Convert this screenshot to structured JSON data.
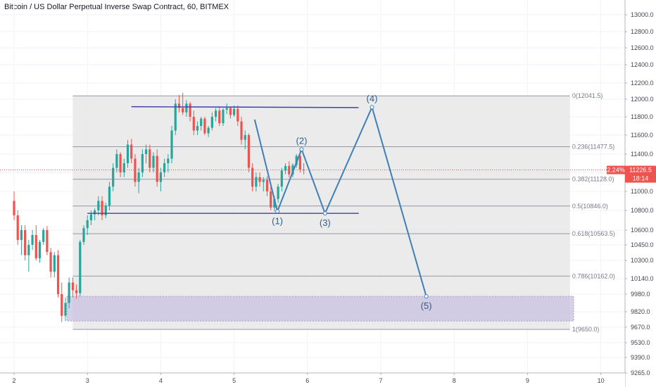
{
  "header": {
    "title": "Bitcoin / US Dollar Perpetual Inverse Swap Contract, 60, BITMEX"
  },
  "price_tag": {
    "change": "2.24%",
    "price": "11226.5",
    "countdown": "18:14"
  },
  "colors": {
    "up": "#26a69a",
    "down": "#ef5350",
    "fib_zone": "#e8e8e8",
    "target_zone": "#c8c0e0",
    "channel_line": "#3f3fb0",
    "wave_line": "#3f7fb8",
    "price_line": "#ef5350"
  },
  "chart_data": {
    "type": "candlestick",
    "x_ticks": [
      "2",
      "3",
      "4",
      "5",
      "6",
      "7",
      "8",
      "9",
      "10"
    ],
    "y_ticks": [
      "13000.0",
      "12800.0",
      "12600.0",
      "12400.0",
      "12200.0",
      "12000.0",
      "11800.0",
      "11600.0",
      "11400.0",
      "11200.0",
      "11000.0",
      "10800.0",
      "10600.0",
      "10450.0",
      "10300.0",
      "10140.0",
      "9980.0",
      "9820.0",
      "9670.0",
      "9530.0",
      "9390.0",
      "9265.0"
    ],
    "fib_levels": [
      {
        "label": "0(12041.5)",
        "value": 12041.5
      },
      {
        "label": "0.236(11477.5)",
        "value": 11477.5
      },
      {
        "label": "0.382(11128.0)",
        "value": 11128.0
      },
      {
        "label": "0.5(10846.0)",
        "value": 10846.0
      },
      {
        "label": "0.618(10563.5)",
        "value": 10563.5
      },
      {
        "label": "0.786(10162.0)",
        "value": 10162.0
      },
      {
        "label": "1(9650.0)",
        "value": 9650.0
      }
    ],
    "target_zone": {
      "from_price": 9730,
      "to_price": 9960
    },
    "channel_lines": [
      {
        "from": {
          "x": 3.6,
          "y": 11915
        },
        "to": {
          "x": 6.7,
          "y": 11905
        }
      },
      {
        "from": {
          "x": 3.0,
          "y": 10770
        },
        "to": {
          "x": 6.7,
          "y": 10770
        }
      }
    ],
    "waves": [
      {
        "label": "(1)",
        "x": 5.59,
        "y": 10790
      },
      {
        "label": "(2)",
        "x": 5.92,
        "y": 11450
      },
      {
        "label": "(3)",
        "x": 6.24,
        "y": 10770
      },
      {
        "label": "(4)",
        "x": 6.88,
        "y": 11910
      },
      {
        "label": "(5)",
        "x": 7.62,
        "y": 9960
      }
    ],
    "wave_start": {
      "x": 5.28,
      "y": 11770
    },
    "last_price": 11226.5,
    "candles": [
      {
        "x": 2.0,
        "o": 10900,
        "h": 11000,
        "l": 10700,
        "c": 10750
      },
      {
        "x": 2.05,
        "o": 10750,
        "h": 10800,
        "l": 10450,
        "c": 10500
      },
      {
        "x": 2.1,
        "o": 10500,
        "h": 10650,
        "l": 10350,
        "c": 10600
      },
      {
        "x": 2.15,
        "o": 10600,
        "h": 10650,
        "l": 10300,
        "c": 10350
      },
      {
        "x": 2.2,
        "o": 10350,
        "h": 10500,
        "l": 10200,
        "c": 10450
      },
      {
        "x": 2.25,
        "o": 10450,
        "h": 10600,
        "l": 10400,
        "c": 10550
      },
      {
        "x": 2.3,
        "o": 10550,
        "h": 10650,
        "l": 10300,
        "c": 10320
      },
      {
        "x": 2.35,
        "o": 10320,
        "h": 10500,
        "l": 10280,
        "c": 10480
      },
      {
        "x": 2.4,
        "o": 10480,
        "h": 10620,
        "l": 10450,
        "c": 10600
      },
      {
        "x": 2.45,
        "o": 10600,
        "h": 10640,
        "l": 10350,
        "c": 10380
      },
      {
        "x": 2.5,
        "o": 10380,
        "h": 10420,
        "l": 10150,
        "c": 10200
      },
      {
        "x": 2.55,
        "o": 10200,
        "h": 10380,
        "l": 10150,
        "c": 10350
      },
      {
        "x": 2.6,
        "o": 10350,
        "h": 10400,
        "l": 9950,
        "c": 9980
      },
      {
        "x": 2.65,
        "o": 9980,
        "h": 10100,
        "l": 9720,
        "c": 9780
      },
      {
        "x": 2.7,
        "o": 9780,
        "h": 9950,
        "l": 9730,
        "c": 9900
      },
      {
        "x": 2.75,
        "o": 9900,
        "h": 10150,
        "l": 9850,
        "c": 10100
      },
      {
        "x": 2.8,
        "o": 10100,
        "h": 10150,
        "l": 9950,
        "c": 10020
      },
      {
        "x": 2.85,
        "o": 10020,
        "h": 10080,
        "l": 9940,
        "c": 9990
      },
      {
        "x": 2.9,
        "o": 9990,
        "h": 10500,
        "l": 9960,
        "c": 10480
      },
      {
        "x": 2.95,
        "o": 10480,
        "h": 10650,
        "l": 10450,
        "c": 10620
      },
      {
        "x": 3.0,
        "o": 10620,
        "h": 10750,
        "l": 10550,
        "c": 10700
      },
      {
        "x": 3.05,
        "o": 10700,
        "h": 10800,
        "l": 10650,
        "c": 10760
      },
      {
        "x": 3.1,
        "o": 10760,
        "h": 10820,
        "l": 10700,
        "c": 10800
      },
      {
        "x": 3.15,
        "o": 10800,
        "h": 10950,
        "l": 10750,
        "c": 10900
      },
      {
        "x": 3.2,
        "o": 10900,
        "h": 10950,
        "l": 10700,
        "c": 10750
      },
      {
        "x": 3.25,
        "o": 10750,
        "h": 10880,
        "l": 10720,
        "c": 10850
      },
      {
        "x": 3.3,
        "o": 10850,
        "h": 11100,
        "l": 10800,
        "c": 11050
      },
      {
        "x": 3.35,
        "o": 11050,
        "h": 11300,
        "l": 11000,
        "c": 11250
      },
      {
        "x": 3.4,
        "o": 11250,
        "h": 11450,
        "l": 11200,
        "c": 11400
      },
      {
        "x": 3.45,
        "o": 11400,
        "h": 11420,
        "l": 11150,
        "c": 11200
      },
      {
        "x": 3.5,
        "o": 11200,
        "h": 11350,
        "l": 11150,
        "c": 11300
      },
      {
        "x": 3.55,
        "o": 11300,
        "h": 11550,
        "l": 11250,
        "c": 11500
      },
      {
        "x": 3.6,
        "o": 11500,
        "h": 11560,
        "l": 11300,
        "c": 11350
      },
      {
        "x": 3.65,
        "o": 11350,
        "h": 11400,
        "l": 11050,
        "c": 11100
      },
      {
        "x": 3.7,
        "o": 11100,
        "h": 11250,
        "l": 10980,
        "c": 11200
      },
      {
        "x": 3.75,
        "o": 11200,
        "h": 11450,
        "l": 11150,
        "c": 11400
      },
      {
        "x": 3.8,
        "o": 11400,
        "h": 11500,
        "l": 11300,
        "c": 11450
      },
      {
        "x": 3.85,
        "o": 11450,
        "h": 11500,
        "l": 11200,
        "c": 11250
      },
      {
        "x": 3.9,
        "o": 11250,
        "h": 11420,
        "l": 11200,
        "c": 11380
      },
      {
        "x": 3.95,
        "o": 11380,
        "h": 11450,
        "l": 11050,
        "c": 11100
      },
      {
        "x": 4.0,
        "o": 11100,
        "h": 11250,
        "l": 11000,
        "c": 11200
      },
      {
        "x": 4.05,
        "o": 11200,
        "h": 11350,
        "l": 11150,
        "c": 11300
      },
      {
        "x": 4.1,
        "o": 11300,
        "h": 11400,
        "l": 11200,
        "c": 11350
      },
      {
        "x": 4.15,
        "o": 11350,
        "h": 11700,
        "l": 11300,
        "c": 11650
      },
      {
        "x": 4.2,
        "o": 11650,
        "h": 12000,
        "l": 11600,
        "c": 11950
      },
      {
        "x": 4.25,
        "o": 11950,
        "h": 12050,
        "l": 11850,
        "c": 11900
      },
      {
        "x": 4.3,
        "o": 11900,
        "h": 12080,
        "l": 11820,
        "c": 11850
      },
      {
        "x": 4.35,
        "o": 11850,
        "h": 11990,
        "l": 11800,
        "c": 11950
      },
      {
        "x": 4.4,
        "o": 11950,
        "h": 11970,
        "l": 11750,
        "c": 11800
      },
      {
        "x": 4.45,
        "o": 11800,
        "h": 11870,
        "l": 11600,
        "c": 11650
      },
      {
        "x": 4.5,
        "o": 11650,
        "h": 11750,
        "l": 11600,
        "c": 11700
      },
      {
        "x": 4.55,
        "o": 11700,
        "h": 11800,
        "l": 11650,
        "c": 11780
      },
      {
        "x": 4.6,
        "o": 11780,
        "h": 11800,
        "l": 11600,
        "c": 11620
      },
      {
        "x": 4.65,
        "o": 11620,
        "h": 11700,
        "l": 11580,
        "c": 11680
      },
      {
        "x": 4.7,
        "o": 11680,
        "h": 11850,
        "l": 11650,
        "c": 11800
      },
      {
        "x": 4.75,
        "o": 11800,
        "h": 11900,
        "l": 11750,
        "c": 11870
      },
      {
        "x": 4.8,
        "o": 11870,
        "h": 11920,
        "l": 11700,
        "c": 11730
      },
      {
        "x": 4.85,
        "o": 11730,
        "h": 11900,
        "l": 11700,
        "c": 11880
      },
      {
        "x": 4.9,
        "o": 11880,
        "h": 11950,
        "l": 11830,
        "c": 11900
      },
      {
        "x": 4.95,
        "o": 11900,
        "h": 11920,
        "l": 11780,
        "c": 11820
      },
      {
        "x": 5.0,
        "o": 11820,
        "h": 11930,
        "l": 11800,
        "c": 11890
      },
      {
        "x": 5.05,
        "o": 11890,
        "h": 11930,
        "l": 11700,
        "c": 11750
      },
      {
        "x": 5.1,
        "o": 11750,
        "h": 11800,
        "l": 11500,
        "c": 11550
      },
      {
        "x": 5.15,
        "o": 11550,
        "h": 11650,
        "l": 11450,
        "c": 11600
      },
      {
        "x": 5.2,
        "o": 11600,
        "h": 11620,
        "l": 11200,
        "c": 11250
      },
      {
        "x": 5.25,
        "o": 11250,
        "h": 11300,
        "l": 11000,
        "c": 11050
      },
      {
        "x": 5.3,
        "o": 11050,
        "h": 11200,
        "l": 11000,
        "c": 11150
      },
      {
        "x": 5.35,
        "o": 11150,
        "h": 11200,
        "l": 11050,
        "c": 11100
      },
      {
        "x": 5.4,
        "o": 11100,
        "h": 11150,
        "l": 11000,
        "c": 11120
      },
      {
        "x": 5.45,
        "o": 11120,
        "h": 11160,
        "l": 10950,
        "c": 11000
      },
      {
        "x": 5.5,
        "o": 11000,
        "h": 11050,
        "l": 10800,
        "c": 10830
      },
      {
        "x": 5.55,
        "o": 10830,
        "h": 10950,
        "l": 10790,
        "c": 10920
      },
      {
        "x": 5.6,
        "o": 10920,
        "h": 11080,
        "l": 10880,
        "c": 11050
      },
      {
        "x": 5.65,
        "o": 11050,
        "h": 11250,
        "l": 11000,
        "c": 11220
      },
      {
        "x": 5.7,
        "o": 11220,
        "h": 11300,
        "l": 11180,
        "c": 11270
      },
      {
        "x": 5.75,
        "o": 11270,
        "h": 11320,
        "l": 11150,
        "c": 11180
      },
      {
        "x": 5.8,
        "o": 11180,
        "h": 11300,
        "l": 11150,
        "c": 11280
      },
      {
        "x": 5.85,
        "o": 11280,
        "h": 11400,
        "l": 11250,
        "c": 11380
      },
      {
        "x": 5.9,
        "o": 11380,
        "h": 11450,
        "l": 11200,
        "c": 11230
      },
      {
        "x": 5.95,
        "o": 11230,
        "h": 11300,
        "l": 11180,
        "c": 11226
      }
    ]
  }
}
